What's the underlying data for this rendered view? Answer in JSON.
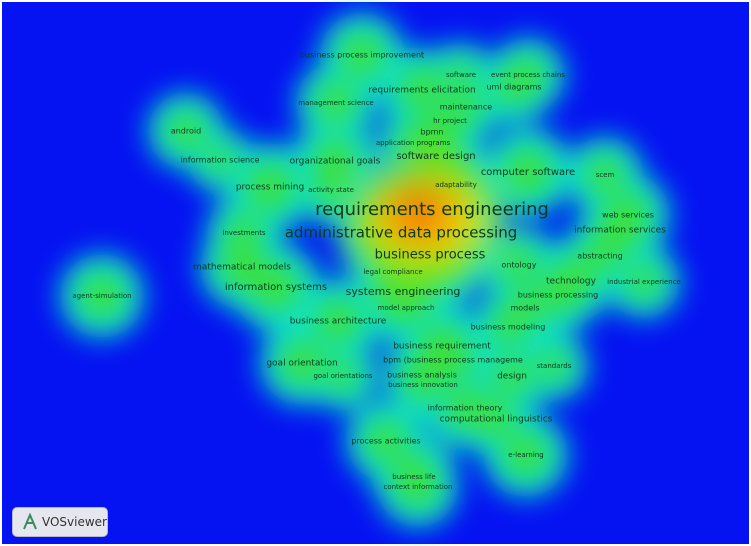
{
  "terms": [
    "business process improvement",
    "software",
    "event process chains",
    "requirements elicitation",
    "uml diagrams",
    "management science",
    "maintenance",
    "hr project",
    "android",
    "bpmn",
    "application programs",
    "information science",
    "organizational goals",
    "software design",
    "computer software",
    "scem",
    "process mining",
    "activity state",
    "adaptability",
    "requirements engineering",
    "web services",
    "investments",
    "administrative data processing",
    "information services",
    "abstracting",
    "business process",
    "mathematical models",
    "legal compliance",
    "ontology",
    "technology",
    "industrial experience",
    "information systems",
    "systems engineering",
    "business processing",
    "agent-simulation",
    "model approach",
    "models",
    "business architecture",
    "business modeling",
    "business requirement",
    "goal orientation",
    "bpm (business process manageme",
    "standards",
    "goal orientations",
    "business analysis",
    "design",
    "business innovation",
    "information theory",
    "computational linguistics",
    "process activities",
    "e-learning",
    "business life",
    "context information"
  ],
  "watermark": "VOSviewer"
}
